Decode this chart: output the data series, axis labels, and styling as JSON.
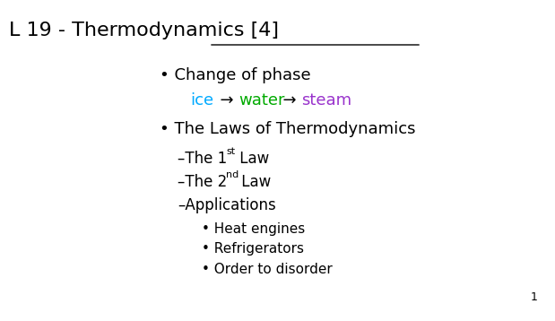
{
  "title_part1": "L 19 - Thermodynamics",
  "title_part2": " [4]",
  "background_color": "#ffffff",
  "page_number": "1",
  "bullet1": "Change of phase",
  "ice_color": "#00aaff",
  "water_color": "#00aa00",
  "steam_color": "#9933cc",
  "arrow_color": "#000000",
  "text_color": "#000000",
  "bullet2": "The Laws of Thermodynamics",
  "sub3": "Applications",
  "subsub1": "Heat engines",
  "subsub2": "Refrigerators",
  "subsub3": "Order to disorder",
  "title_fontsize": 16,
  "main_fontsize": 13,
  "sub_fontsize": 12,
  "subsub_fontsize": 11,
  "phase_fontsize": 13,
  "super_fontsize": 8,
  "pagenum_fontsize": 9
}
